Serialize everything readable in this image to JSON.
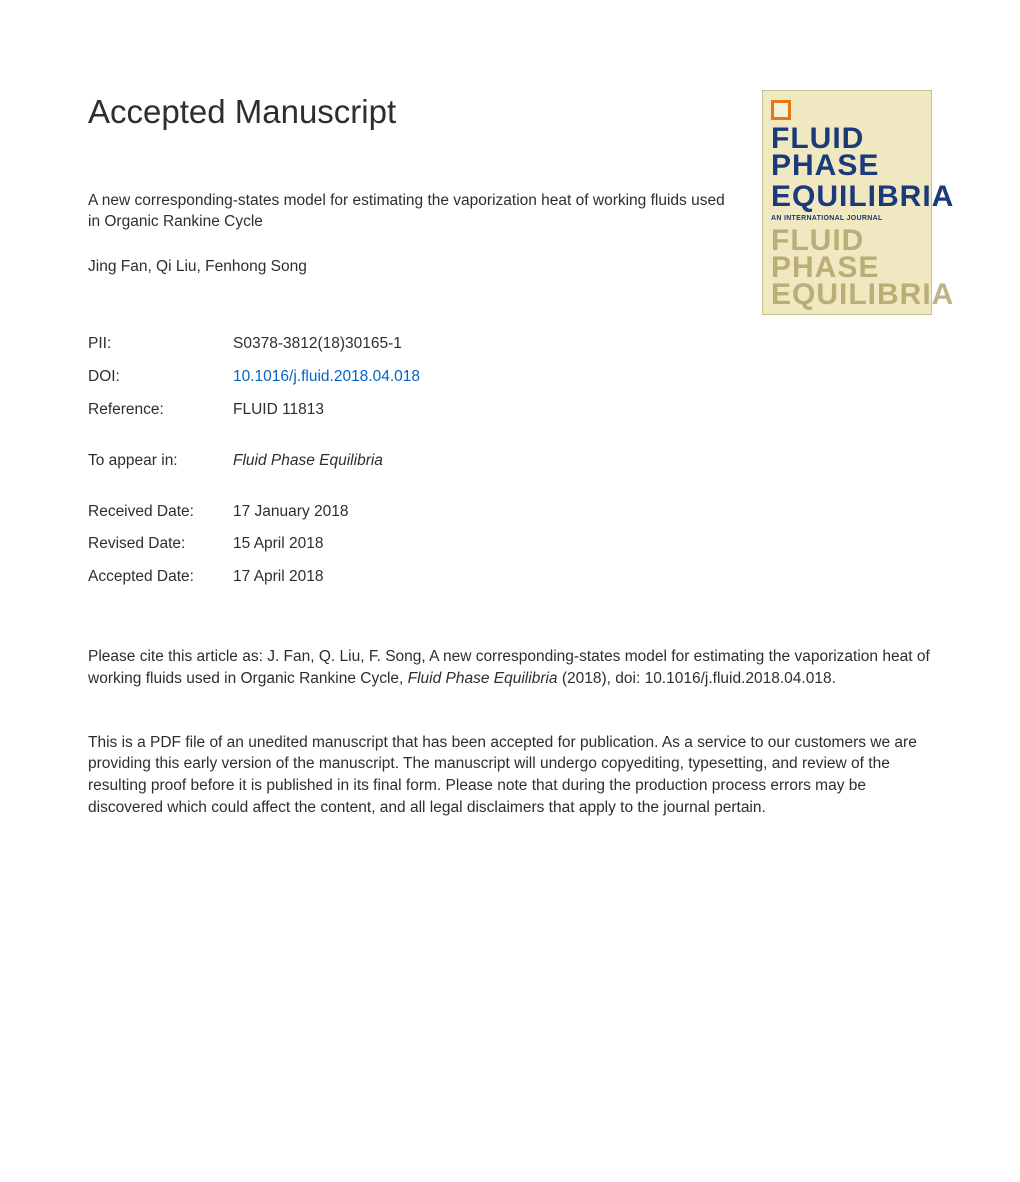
{
  "heading": "Accepted Manuscript",
  "article_title": "A new corresponding-states model for estimating the vaporization heat of working fluids used in Organic Rankine Cycle",
  "authors": "Jing Fan, Qi Liu, Fenhong Song",
  "cover": {
    "journal_line1": "FLUID PHASE",
    "journal_line2": "EQUILIBRIA",
    "subtitle": "AN INTERNATIONAL JOURNAL",
    "shadow_line1": "FLUID PHASE",
    "shadow_line2": "EQUILIBRIA",
    "bg_color": "#f0e8c0",
    "title_color": "#1a3a7a",
    "shadow_color": "#a89a5e",
    "logo_color": "#e67817"
  },
  "meta": {
    "pii_label": "PII:",
    "pii_value": "S0378-3812(18)30165-1",
    "doi_label": "DOI:",
    "doi_value": "10.1016/j.fluid.2018.04.018",
    "ref_label": "Reference:",
    "ref_value": "FLUID 11813",
    "appear_label": "To appear in:",
    "appear_value": "Fluid Phase Equilibria",
    "recv_label": "Received Date:",
    "recv_value": "17 January 2018",
    "rev_label": "Revised Date:",
    "rev_value": "15 April 2018",
    "acc_label": "Accepted Date:",
    "acc_value": "17 April 2018"
  },
  "cite_prefix": "Please cite this article as: J. Fan, Q. Liu, F. Song, A new corresponding-states model for estimating the vaporization heat of working fluids used in Organic Rankine Cycle, ",
  "cite_journal": "Fluid Phase Equilibria",
  "cite_suffix": " (2018), doi: 10.1016/j.fluid.2018.04.018.",
  "disclaimer": "This is a PDF file of an unedited manuscript that has been accepted for publication. As a service to our customers we are providing this early version of the manuscript. The manuscript will undergo copyediting, typesetting, and review of the resulting proof before it is published in its final form. Please note that during the production process errors may be discovered which could affect the content, and all legal disclaimers that apply to the journal pertain.",
  "colors": {
    "text": "#2e2e2e",
    "link": "#0563c1",
    "background": "#ffffff"
  },
  "typography": {
    "heading_fontsize": 33,
    "body_fontsize": 15.5,
    "font_family": "Arial, Helvetica, sans-serif"
  }
}
